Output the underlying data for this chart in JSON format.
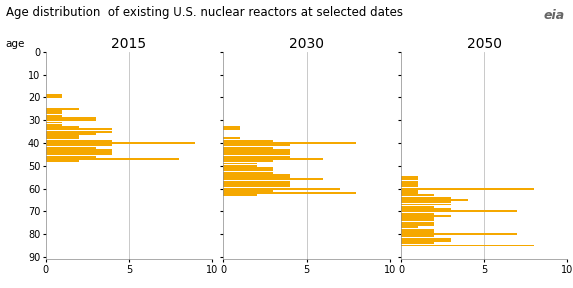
{
  "title": "Age distribution  of existing U.S. nuclear reactors at selected dates",
  "age_label": "age",
  "bar_color": "#F5A800",
  "subplots": [
    {
      "year": "2015",
      "ages": [
        19,
        20,
        25,
        26,
        27,
        28,
        29,
        30,
        31,
        32,
        33,
        34,
        35,
        36,
        37,
        38,
        39,
        40,
        41,
        42,
        43,
        44,
        45,
        46,
        47,
        48
      ],
      "counts": [
        1,
        1,
        2,
        1,
        1,
        1,
        3,
        3,
        1,
        1,
        2,
        4,
        4,
        3,
        2,
        2,
        4,
        9,
        4,
        3,
        4,
        4,
        4,
        3,
        8,
        2
      ]
    },
    {
      "year": "2030",
      "ages": [
        33,
        34,
        38,
        39,
        40,
        41,
        42,
        43,
        44,
        45,
        46,
        47,
        48,
        49,
        50,
        51,
        52,
        53,
        54,
        55,
        56,
        57,
        58,
        59,
        60,
        61,
        62,
        63
      ],
      "counts": [
        1,
        1,
        1,
        3,
        8,
        4,
        3,
        4,
        4,
        4,
        4,
        6,
        3,
        2,
        2,
        3,
        3,
        3,
        4,
        4,
        6,
        4,
        4,
        4,
        7,
        3,
        8,
        2
      ]
    },
    {
      "year": "2050",
      "ages": [
        55,
        56,
        57,
        58,
        59,
        60,
        61,
        62,
        63,
        64,
        65,
        66,
        67,
        68,
        69,
        70,
        71,
        72,
        73,
        74,
        75,
        76,
        77,
        78,
        79,
        80,
        81,
        82,
        83,
        84,
        85
      ],
      "counts": [
        1,
        1,
        1,
        1,
        1,
        8,
        1,
        1,
        2,
        3,
        4,
        3,
        3,
        2,
        3,
        7,
        2,
        3,
        2,
        2,
        2,
        2,
        1,
        2,
        2,
        7,
        2,
        3,
        3,
        2,
        8
      ]
    }
  ],
  "xlim": [
    0,
    10
  ],
  "ylim_min": 0,
  "ylim_max": 91,
  "yticks": [
    0,
    10,
    20,
    30,
    40,
    50,
    60,
    70,
    80,
    90
  ],
  "xticks": [
    0,
    5,
    10
  ],
  "grid_color": "#c0c0c0",
  "background_color": "#ffffff",
  "title_fontsize": 8.5,
  "tick_fontsize": 7,
  "year_fontsize": 10
}
